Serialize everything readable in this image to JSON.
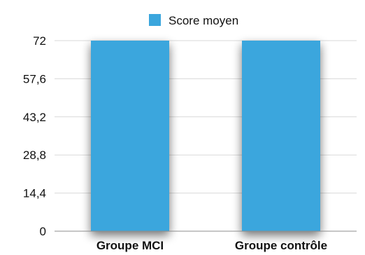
{
  "chart_data": {
    "type": "bar",
    "categories": [
      "Groupe MCI",
      "Groupe contrôle"
    ],
    "series": [
      {
        "name": "Score moyen",
        "values": [
          72,
          72
        ]
      }
    ],
    "yticks": [
      "0",
      "14,4",
      "28,8",
      "43,2",
      "57,6",
      "72"
    ],
    "ylim": [
      0,
      72
    ],
    "grid": true,
    "legend": "top-center",
    "colors": {
      "bar": "#3ba6dd",
      "bar_dark": "#2f93c9"
    }
  }
}
